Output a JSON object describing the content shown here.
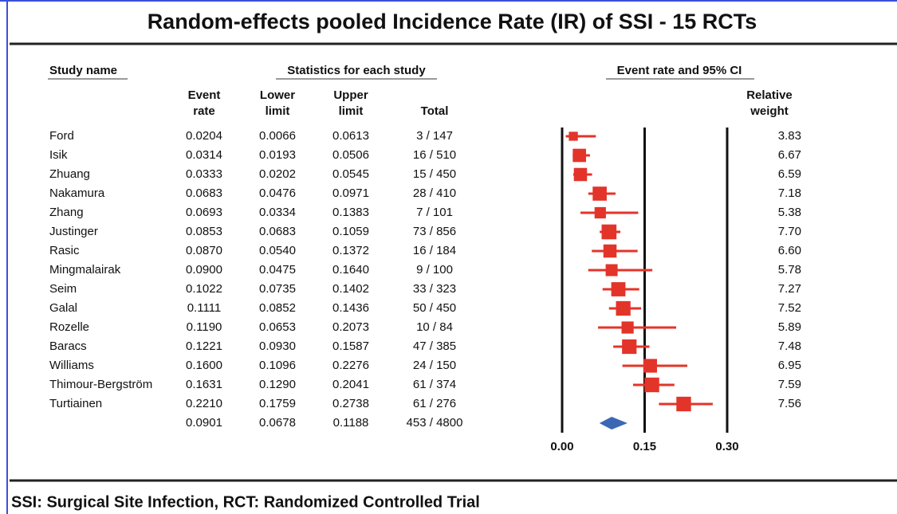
{
  "chart_data": {
    "type": "forest",
    "title": "Random-effects pooled Incidence Rate (IR) of SSI - 15 RCTs",
    "note": "SSI: Surgical Site Infection, RCT: Randomized Controlled Trial",
    "headers": {
      "study": "Study name",
      "stats": "Statistics for each study",
      "plot": "Event rate and 95% CI",
      "event_rate": [
        "Event",
        "rate"
      ],
      "lower": [
        "Lower",
        "limit"
      ],
      "upper": [
        "Upper",
        "limit"
      ],
      "total": "Total",
      "weight": [
        "Relative",
        "weight"
      ]
    },
    "categories": [
      "Ford",
      "Isik",
      "Zhuang",
      "Nakamura",
      "Zhang",
      "Justinger",
      "Rasic",
      "Mingmalairak",
      "Seim",
      "Galal",
      "Rozelle",
      "Baracs",
      "Williams",
      "Thimour-Bergström",
      "Turtiainen",
      null
    ],
    "values": [
      0.0204,
      0.0314,
      0.0333,
      0.0683,
      0.0693,
      0.0853,
      0.087,
      0.09,
      0.1022,
      0.1111,
      0.119,
      0.1221,
      0.16,
      0.1631,
      0.221,
      0.0901
    ],
    "value_labels": [
      "0.0204",
      "0.0314",
      "0.0333",
      "0.0683",
      "0.0693",
      "0.0853",
      "0.0870",
      "0.0900",
      "0.1022",
      "0.1111",
      "0.1190",
      "0.1221",
      "0.1600",
      "0.1631",
      "0.2210",
      "0.0901"
    ],
    "lower": [
      0.0066,
      0.0193,
      0.0202,
      0.0476,
      0.0334,
      0.0683,
      0.054,
      0.0475,
      0.0735,
      0.0852,
      0.0653,
      0.093,
      0.1096,
      0.129,
      0.1759,
      0.0678
    ],
    "lower_labels": [
      "0.0066",
      "0.0193",
      "0.0202",
      "0.0476",
      "0.0334",
      "0.0683",
      "0.0540",
      "0.0475",
      "0.0735",
      "0.0852",
      "0.0653",
      "0.0930",
      "0.1096",
      "0.1290",
      "0.1759",
      "0.0678"
    ],
    "upper": [
      0.0613,
      0.0506,
      0.0545,
      0.0971,
      0.1383,
      0.1059,
      0.1372,
      0.164,
      0.1402,
      0.1436,
      0.2073,
      0.1587,
      0.2276,
      0.2041,
      0.2738,
      0.1188
    ],
    "upper_labels": [
      "0.0613",
      "0.0506",
      "0.0545",
      "0.0971",
      "0.1383",
      "0.1059",
      "0.1372",
      "0.1640",
      "0.1402",
      "0.1436",
      "0.2073",
      "0.1587",
      "0.2276",
      "0.2041",
      "0.2738",
      "0.1188"
    ],
    "totals": [
      "3 / 147",
      "16 / 510",
      "15 / 450",
      "28 / 410",
      "7 / 101",
      "73 / 856",
      "16 / 184",
      "9 / 100",
      "33 / 323",
      "50 / 450",
      "10 / 84",
      "47 / 385",
      "24 / 150",
      "61 / 374",
      "61 / 276",
      "453 / 4800"
    ],
    "weights": [
      3.83,
      6.67,
      6.59,
      7.18,
      5.38,
      7.7,
      6.6,
      5.78,
      7.27,
      7.52,
      5.89,
      7.48,
      6.95,
      7.59,
      7.56
    ],
    "weight_labels": [
      "3.83",
      "6.67",
      "6.59",
      "7.18",
      "5.38",
      "7.70",
      "6.60",
      "5.78",
      "7.27",
      "7.52",
      "5.89",
      "7.48",
      "6.95",
      "7.59",
      "7.56"
    ],
    "color": "#e3342a",
    "summary_color": "#3b68b5",
    "xlim": [
      0,
      0.3
    ],
    "xticks": [
      {
        "value": 0,
        "label": "0.00"
      },
      {
        "value": 0.15,
        "label": "0.15"
      },
      {
        "value": 0.3,
        "label": "0.30"
      }
    ]
  }
}
